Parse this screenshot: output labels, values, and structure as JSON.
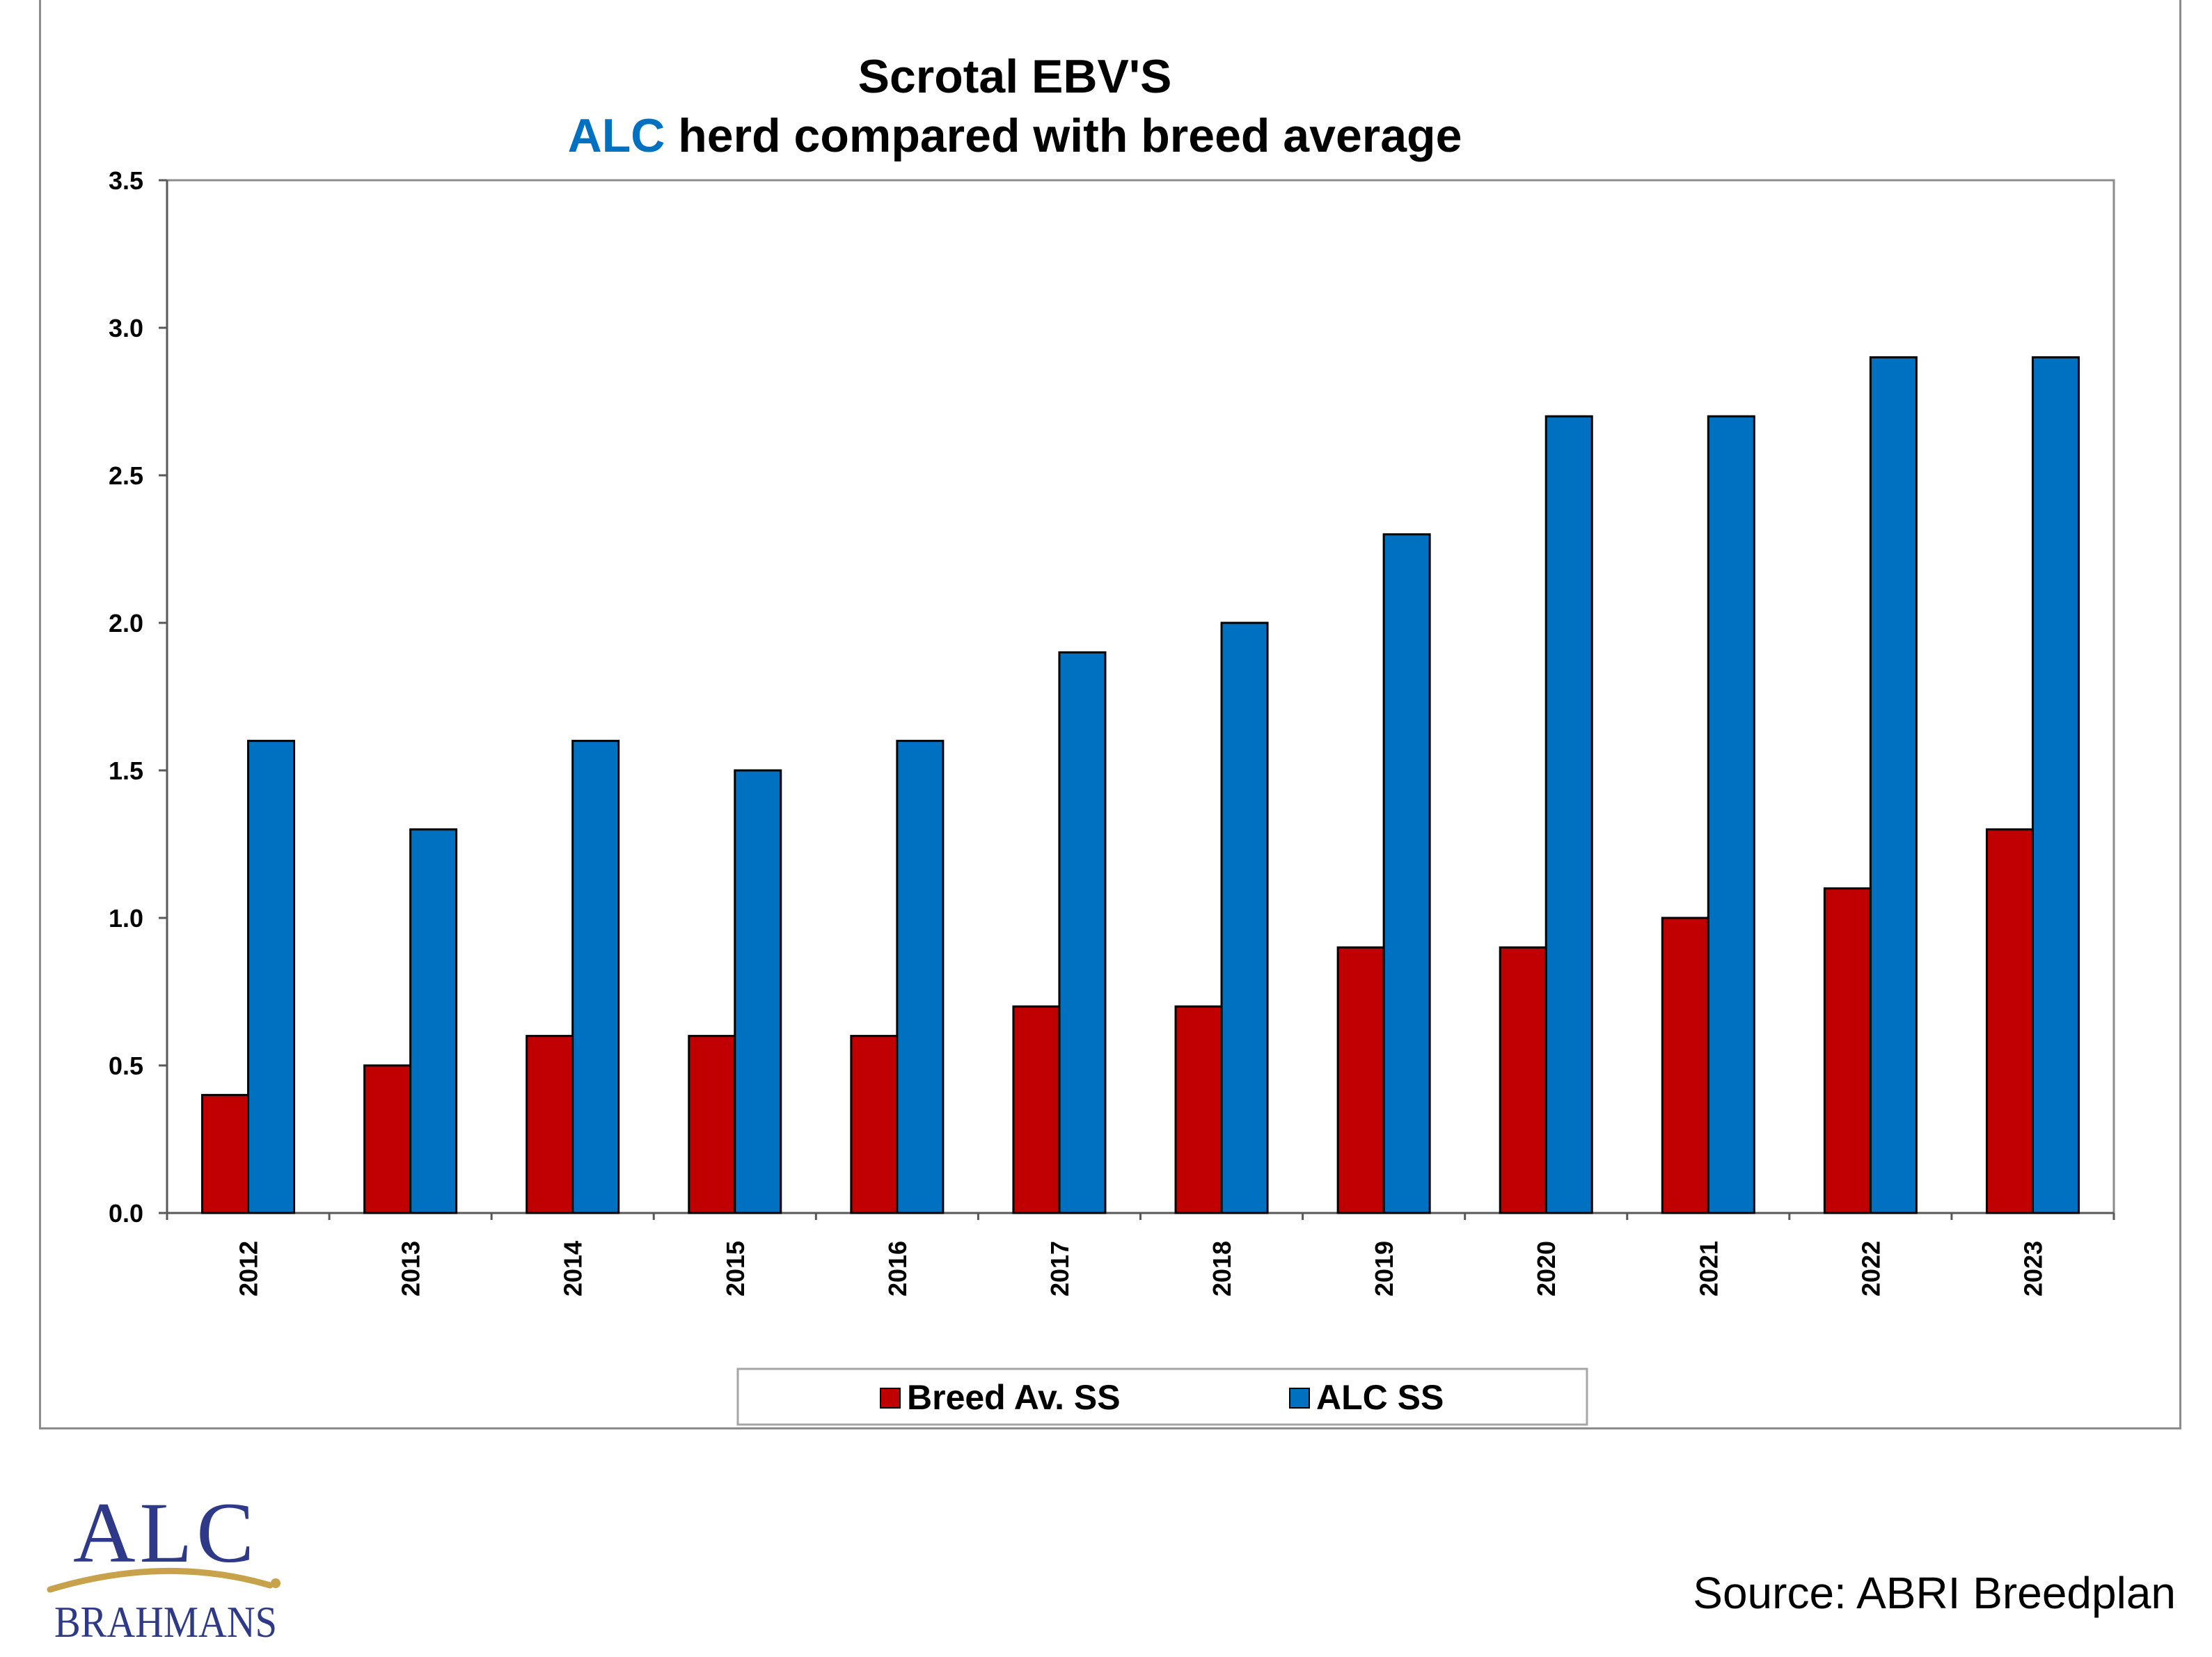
{
  "colors": {
    "breed": "#c00000",
    "alc": "#0070c0",
    "title_accent": "#0070c0",
    "logo_text": "#2e3a87",
    "logo_swoosh": "#c8a24a"
  },
  "chart_data": {
    "type": "bar",
    "title_line1": "Scrotal EBV'S",
    "title_line2_accent": "ALC",
    "title_line2_rest": " herd compared with breed average",
    "categories": [
      "2012",
      "2013",
      "2014",
      "2015",
      "2016",
      "2017",
      "2018",
      "2019",
      "2020",
      "2021",
      "2022",
      "2023"
    ],
    "series": [
      {
        "name": "Breed Av. SS",
        "values": [
          0.4,
          0.5,
          0.6,
          0.6,
          0.6,
          0.7,
          0.7,
          0.9,
          0.9,
          1.0,
          1.1,
          1.3
        ]
      },
      {
        "name": "ALC SS",
        "values": [
          1.6,
          1.3,
          1.6,
          1.5,
          1.6,
          1.9,
          2.0,
          2.3,
          2.7,
          2.7,
          2.9,
          2.9
        ]
      }
    ],
    "ylim": [
      0,
      3.5
    ],
    "yticks": [
      "0.0",
      "0.5",
      "1.0",
      "1.5",
      "2.0",
      "2.5",
      "3.0",
      "3.5"
    ],
    "grid": false,
    "legend_position": "bottom"
  },
  "logo": {
    "line1": "ALC",
    "line2": "BRAHMANS"
  },
  "source": "Source: ABRI Breedplan"
}
